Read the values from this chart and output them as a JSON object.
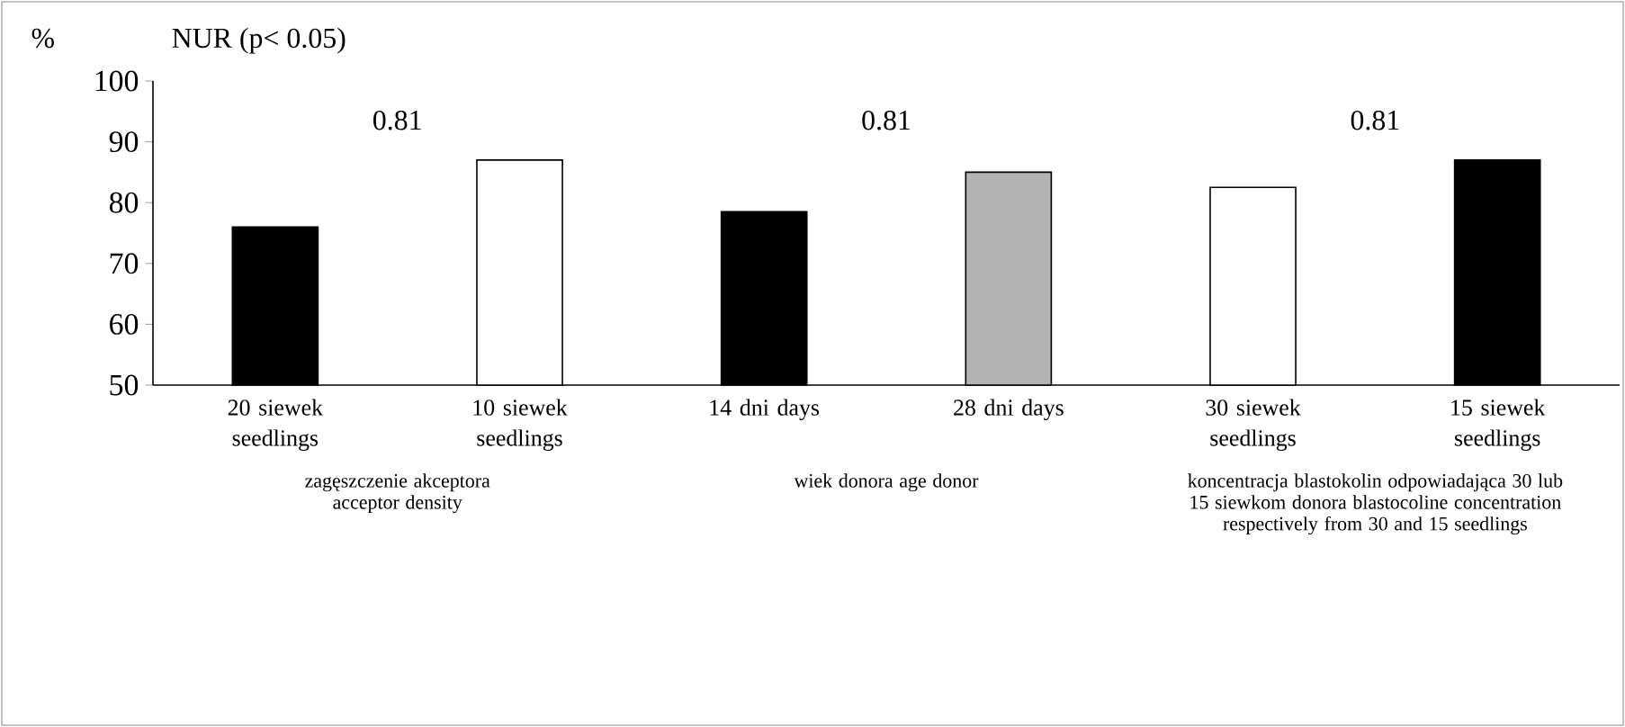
{
  "chart_data": {
    "type": "bar",
    "title": "NUR (p< 0.05)",
    "ylabel": "%",
    "categories": [
      "20 siewek seedlings",
      "10 siewek seedlings",
      "14 dni days",
      "28 dni days",
      "30 siewek seedlings",
      "15 siewek seedlings"
    ],
    "values": [
      76,
      87,
      78.5,
      85,
      82.5,
      87
    ],
    "colors": [
      "#000000",
      "#ffffff",
      "#000000",
      "#b3b3b3",
      "#ffffff",
      "#000000"
    ],
    "ylim": [
      50,
      100
    ],
    "yticks": [
      50,
      60,
      70,
      80,
      90,
      100
    ],
    "grid": false,
    "annotations": [
      "0.81",
      "0.81",
      "0.81",
      "zagęszczenie akceptora acceptor density",
      "wiek donora   age donor",
      "koncentracja blastokolin odpowiadająca 30 lub 15 siewkom donora blastocoline concentration respectively from 30 and 15 seedlings"
    ]
  }
}
